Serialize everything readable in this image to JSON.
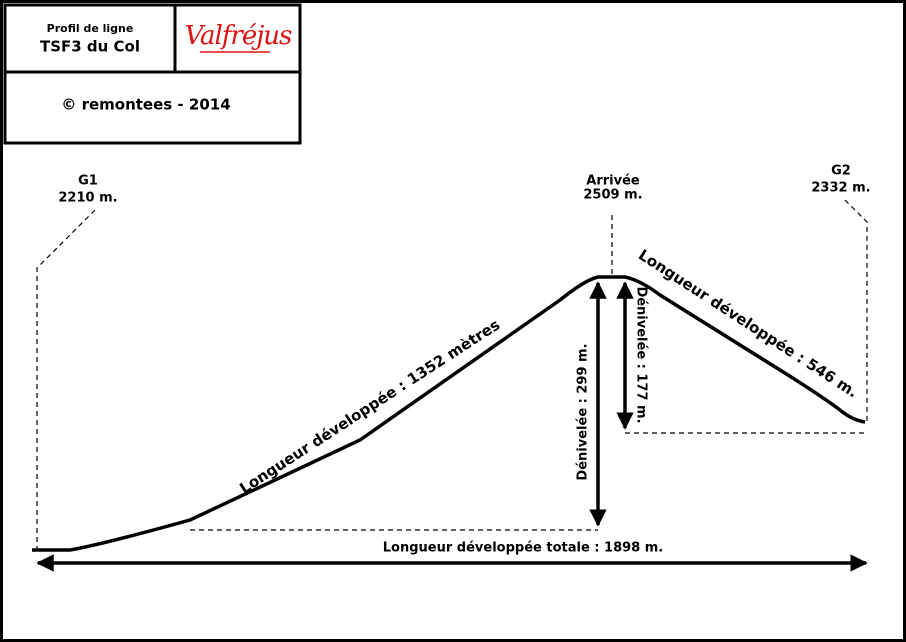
{
  "header": {
    "subtitle": "Profil de ligne",
    "title": "TSF3 du Col",
    "logo": "Valfréjus",
    "credit": "© remontees - 2014"
  },
  "stations": [
    {
      "name": "G1",
      "altitude": "2210 m."
    },
    {
      "name": "Arrivée",
      "altitude": "2509 m."
    },
    {
      "name": "G2",
      "altitude": "2332 m."
    }
  ],
  "annotations": {
    "left_length": "Longueur développée : 1352 mètres",
    "right_length": "Longueur développée : 546 m.",
    "left_drop": "Dénivelée : 299 m.",
    "right_drop": "Dénivelée : 177 m.",
    "total_length": "Longueur développée totale : 1898 m."
  }
}
